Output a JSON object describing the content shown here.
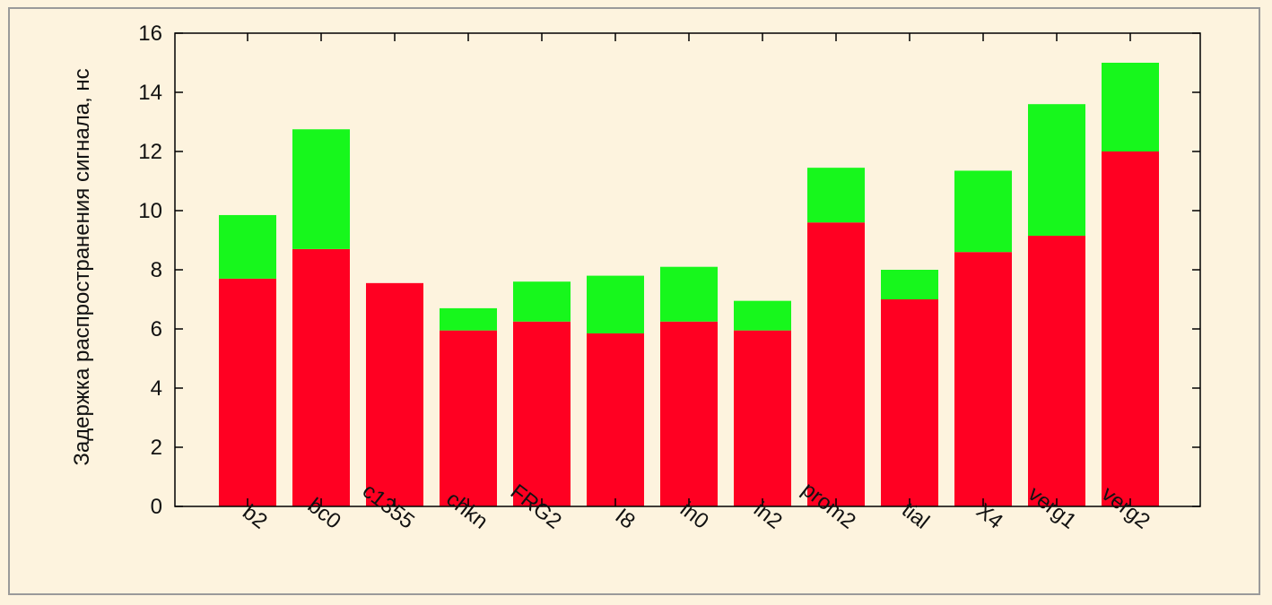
{
  "chart_data": {
    "type": "bar",
    "stacked": true,
    "title": "",
    "xlabel": "",
    "ylabel": "Задержка распространения сигнала, нс",
    "ylim": [
      0,
      16
    ],
    "yticks": [
      0,
      2,
      4,
      6,
      8,
      10,
      12,
      14,
      16
    ],
    "grid": false,
    "legend": "none",
    "categories": [
      "b2",
      "bc0",
      "c1355",
      "chkn",
      "FRG2",
      "I8",
      "in0",
      "in2",
      "prom2",
      "tial",
      "X4",
      "verg1",
      "verg2"
    ],
    "series": [
      {
        "color": "#ff0022",
        "values": [
          7.7,
          8.7,
          7.55,
          5.95,
          6.25,
          5.85,
          6.25,
          5.95,
          9.6,
          7.0,
          8.6,
          9.15,
          12.0
        ]
      },
      {
        "color": "#17f71c",
        "values": [
          2.15,
          4.05,
          0,
          0.75,
          1.35,
          1.95,
          1.85,
          1.0,
          1.85,
          1.0,
          2.75,
          4.45,
          3.0
        ]
      }
    ]
  }
}
